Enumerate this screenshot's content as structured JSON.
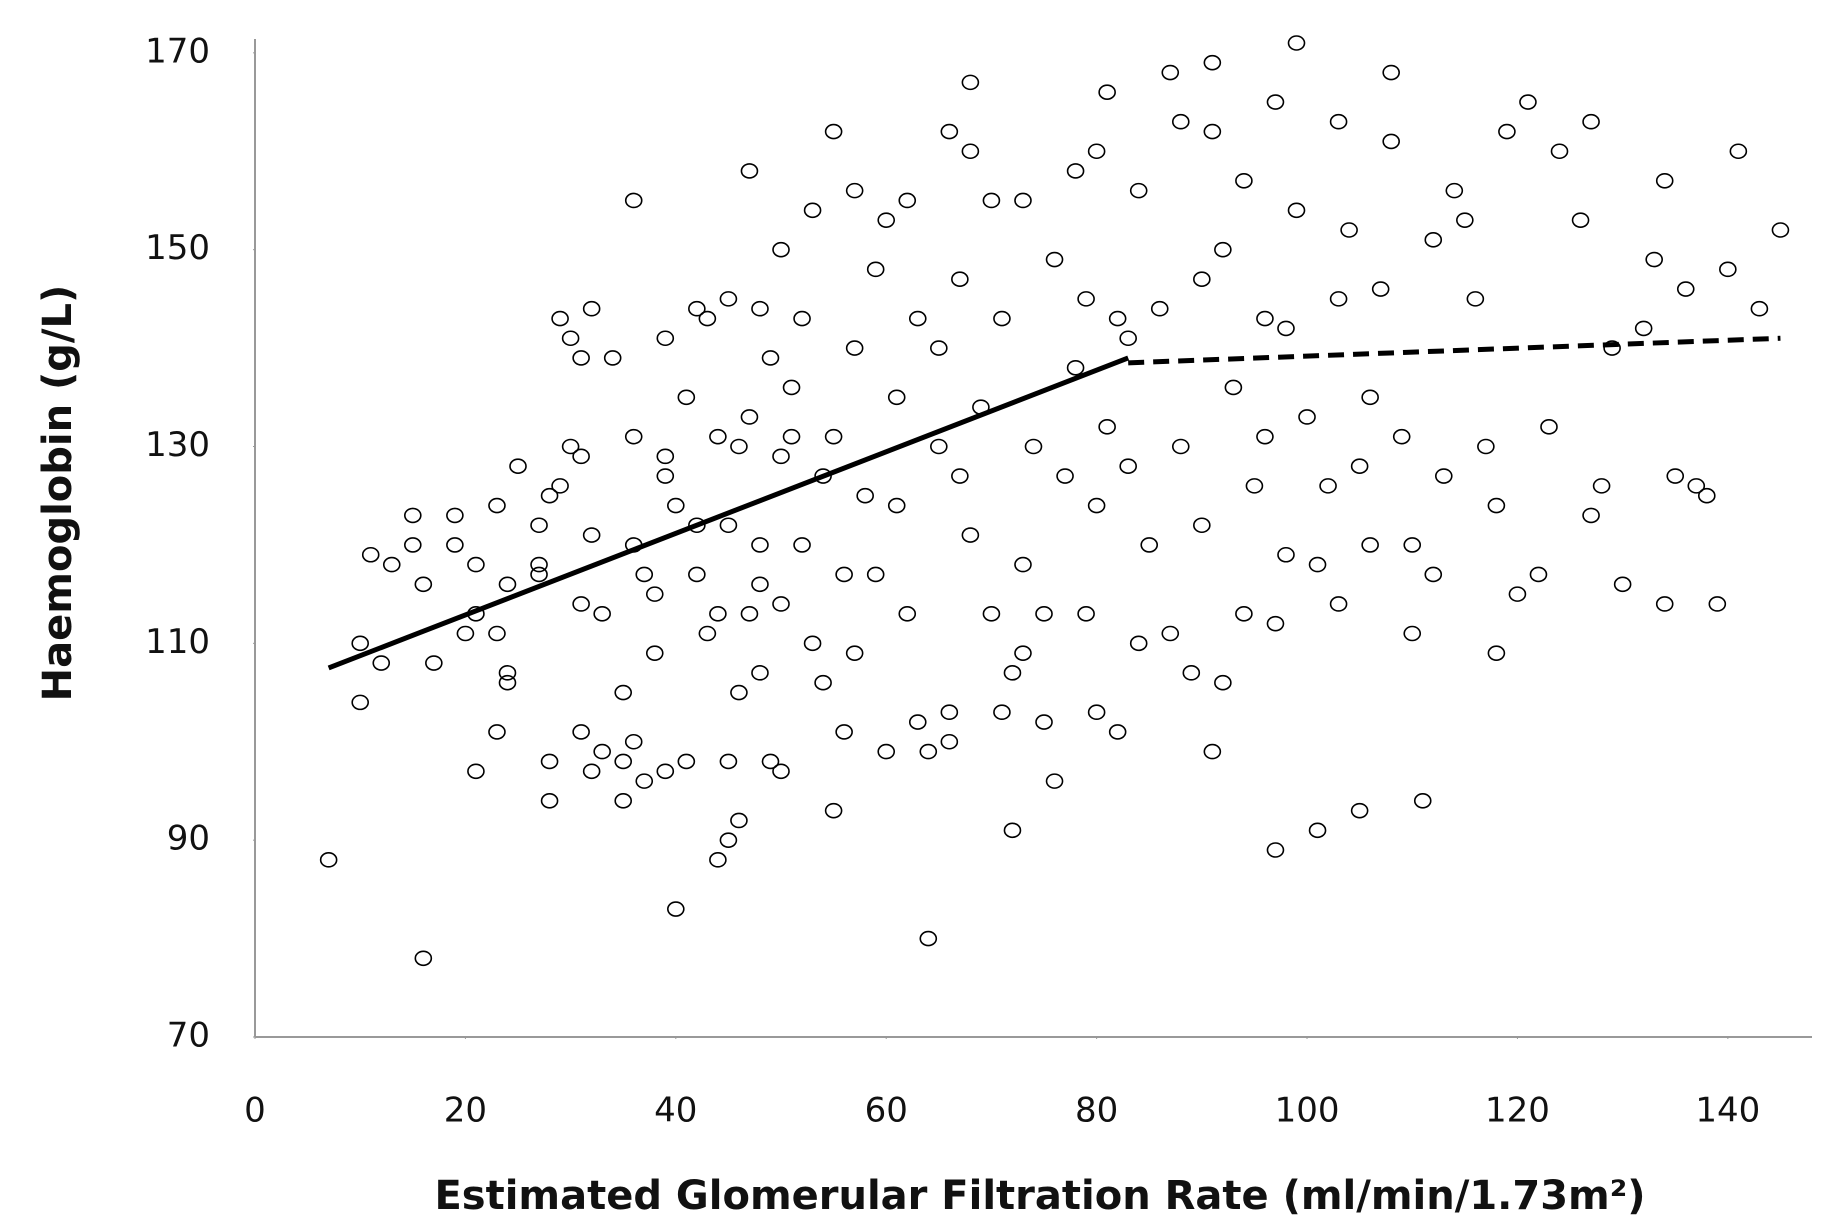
{
  "chart_data": {
    "type": "scatter",
    "x_label": "Estimated Glomerular Filtration Rate (ml/min/1.73m²)",
    "y_label": "Haemoglobin (g/L)",
    "xlim": [
      0,
      148
    ],
    "ylim": [
      70,
      171
    ],
    "xticks": [
      0,
      20,
      40,
      60,
      80,
      100,
      120,
      140
    ],
    "yticks": [
      70,
      90,
      110,
      130,
      150,
      170
    ],
    "marker_color": "#000000",
    "line_color": "#000000",
    "x": [
      7,
      10,
      10,
      11,
      12,
      13,
      15,
      15,
      16,
      16,
      17,
      19,
      19,
      20,
      21,
      21,
      21,
      23,
      23,
      23,
      24,
      24,
      24,
      25,
      27,
      27,
      27,
      28,
      28,
      28,
      29,
      29,
      30,
      30,
      31,
      31,
      31,
      31,
      32,
      32,
      32,
      33,
      33,
      34,
      35,
      35,
      35,
      36,
      36,
      36,
      36,
      37,
      37,
      38,
      38,
      39,
      39,
      39,
      39,
      40,
      40,
      41,
      41,
      42,
      42,
      42,
      43,
      43,
      44,
      44,
      44,
      45,
      45,
      45,
      45,
      46,
      46,
      46,
      47,
      47,
      47,
      48,
      48,
      48,
      48,
      49,
      49,
      50,
      50,
      50,
      50,
      51,
      51,
      52,
      52,
      53,
      53,
      54,
      54,
      55,
      55,
      55,
      56,
      56,
      57,
      57,
      57,
      58,
      59,
      59,
      60,
      60,
      61,
      61,
      62,
      62,
      63,
      63,
      64,
      64,
      65,
      65,
      66,
      66,
      66,
      67,
      67,
      68,
      68,
      68,
      69,
      70,
      70,
      71,
      71,
      72,
      72,
      73,
      73,
      73,
      74,
      75,
      75,
      76,
      76,
      77,
      78,
      78,
      79,
      79,
      80,
      80,
      80,
      81,
      81,
      82,
      82,
      83,
      83,
      84,
      84,
      85,
      86,
      87,
      87,
      88,
      88,
      89,
      90,
      90,
      91,
      91,
      91,
      92,
      92,
      93,
      94,
      94,
      95,
      96,
      96,
      97,
      97,
      97,
      98,
      98,
      99,
      99,
      100,
      101,
      101,
      102,
      103,
      103,
      103,
      104,
      105,
      105,
      106,
      106,
      107,
      108,
      108,
      109,
      110,
      110,
      111,
      112,
      112,
      113,
      114,
      115,
      116,
      117,
      118,
      118,
      119,
      120,
      121,
      122,
      123,
      124,
      126,
      127,
      127,
      128,
      129,
      130,
      132,
      133,
      134,
      134,
      135,
      136,
      137,
      138,
      139,
      140,
      141,
      143,
      145
    ],
    "y": [
      88,
      110,
      104,
      119,
      108,
      118,
      123,
      120,
      116,
      78,
      108,
      123,
      120,
      111,
      113,
      118,
      97,
      101,
      111,
      124,
      107,
      106,
      116,
      128,
      118,
      117,
      122,
      98,
      94,
      125,
      126,
      143,
      141,
      130,
      114,
      129,
      139,
      101,
      97,
      121,
      144,
      99,
      113,
      139,
      98,
      94,
      105,
      155,
      120,
      100,
      131,
      96,
      117,
      115,
      109,
      129,
      127,
      97,
      141,
      124,
      83,
      135,
      98,
      117,
      144,
      122,
      111,
      143,
      113,
      131,
      88,
      90,
      98,
      145,
      122,
      105,
      130,
      92,
      113,
      133,
      158,
      107,
      120,
      144,
      116,
      98,
      139,
      150,
      129,
      97,
      114,
      131,
      136,
      143,
      120,
      110,
      154,
      127,
      106,
      162,
      131,
      93,
      101,
      117,
      140,
      156,
      109,
      125,
      148,
      117,
      153,
      99,
      135,
      124,
      155,
      113,
      143,
      102,
      99,
      80,
      130,
      140,
      162,
      103,
      100,
      127,
      147,
      167,
      160,
      121,
      134,
      155,
      113,
      143,
      103,
      91,
      107,
      155,
      109,
      118,
      130,
      102,
      113,
      96,
      149,
      127,
      138,
      158,
      113,
      145,
      103,
      124,
      160,
      166,
      132,
      143,
      101,
      128,
      141,
      110,
      156,
      120,
      144,
      111,
      168,
      163,
      130,
      107,
      122,
      147,
      99,
      162,
      169,
      106,
      150,
      136,
      113,
      157,
      126,
      131,
      143,
      89,
      165,
      112,
      119,
      142,
      171,
      154,
      133,
      91,
      118,
      126,
      114,
      145,
      163,
      152,
      93,
      128,
      135,
      120,
      146,
      168,
      161,
      131,
      111,
      120,
      94,
      117,
      151,
      127,
      156,
      153,
      145,
      130,
      124,
      109,
      162,
      115,
      165,
      117,
      132,
      160,
      153,
      123,
      163,
      126,
      140,
      116,
      142,
      149,
      114,
      157,
      127,
      146,
      126,
      125,
      114,
      148,
      160,
      144,
      152
    ],
    "trend_lines": [
      {
        "style": "solid",
        "x": [
          7,
          83
        ],
        "y": [
          107.5,
          139
        ]
      },
      {
        "style": "dashed",
        "x": [
          83,
          145
        ],
        "y": [
          138.5,
          141
        ]
      }
    ]
  }
}
